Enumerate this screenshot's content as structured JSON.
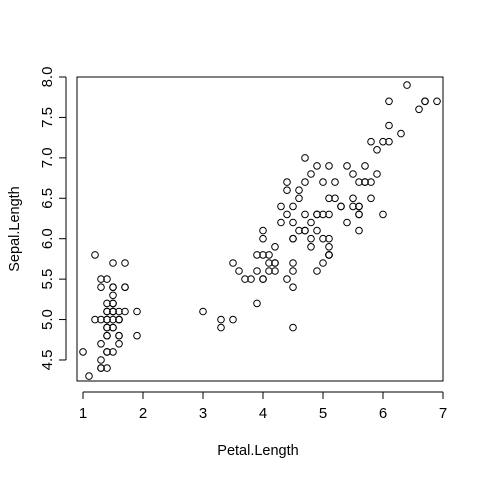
{
  "chart_data": {
    "type": "scatter",
    "title": "",
    "xlabel": "Petal.Length",
    "ylabel": "Sepal.Length",
    "xlim": [
      0.9,
      7.0
    ],
    "ylim": [
      4.24,
      8.0
    ],
    "xticks": [
      1,
      2,
      3,
      4,
      5,
      6,
      7
    ],
    "yticks": [
      4.5,
      5.0,
      5.5,
      6.0,
      6.5,
      7.0,
      7.5,
      8.0
    ],
    "xtick_labels": [
      "1",
      "2",
      "3",
      "4",
      "5",
      "6",
      "7"
    ],
    "ytick_labels": [
      "4.5",
      "5.0",
      "5.5",
      "6.0",
      "6.5",
      "7.0",
      "7.5",
      "8.0"
    ],
    "grid": false,
    "marker": "open-circle",
    "color": "#000000",
    "points": [
      [
        1.4,
        5.1
      ],
      [
        1.4,
        4.9
      ],
      [
        1.3,
        4.7
      ],
      [
        1.5,
        4.6
      ],
      [
        1.4,
        5.0
      ],
      [
        1.7,
        5.4
      ],
      [
        1.4,
        4.6
      ],
      [
        1.5,
        5.0
      ],
      [
        1.4,
        4.4
      ],
      [
        1.5,
        4.9
      ],
      [
        1.5,
        5.4
      ],
      [
        1.6,
        4.8
      ],
      [
        1.4,
        4.8
      ],
      [
        1.1,
        4.3
      ],
      [
        1.2,
        5.8
      ],
      [
        1.5,
        5.7
      ],
      [
        1.3,
        5.4
      ],
      [
        1.4,
        5.1
      ],
      [
        1.7,
        5.7
      ],
      [
        1.5,
        5.1
      ],
      [
        1.7,
        5.4
      ],
      [
        1.5,
        5.1
      ],
      [
        1.0,
        4.6
      ],
      [
        1.7,
        5.1
      ],
      [
        1.9,
        4.8
      ],
      [
        1.6,
        5.0
      ],
      [
        1.6,
        5.0
      ],
      [
        1.5,
        5.2
      ],
      [
        1.4,
        5.2
      ],
      [
        1.6,
        4.7
      ],
      [
        1.6,
        4.8
      ],
      [
        1.5,
        5.4
      ],
      [
        1.5,
        5.2
      ],
      [
        1.4,
        5.5
      ],
      [
        1.5,
        4.9
      ],
      [
        1.2,
        5.0
      ],
      [
        1.3,
        5.5
      ],
      [
        1.4,
        4.9
      ],
      [
        1.3,
        4.4
      ],
      [
        1.5,
        5.1
      ],
      [
        1.3,
        5.0
      ],
      [
        1.3,
        4.5
      ],
      [
        1.3,
        4.4
      ],
      [
        1.6,
        5.0
      ],
      [
        1.9,
        5.1
      ],
      [
        1.4,
        4.8
      ],
      [
        1.6,
        5.1
      ],
      [
        1.4,
        4.6
      ],
      [
        1.5,
        5.3
      ],
      [
        1.4,
        5.0
      ],
      [
        4.7,
        7.0
      ],
      [
        4.5,
        6.4
      ],
      [
        4.9,
        6.9
      ],
      [
        4.0,
        5.5
      ],
      [
        4.6,
        6.5
      ],
      [
        4.5,
        5.7
      ],
      [
        4.7,
        6.3
      ],
      [
        3.3,
        4.9
      ],
      [
        4.6,
        6.6
      ],
      [
        3.9,
        5.2
      ],
      [
        3.5,
        5.0
      ],
      [
        4.2,
        5.9
      ],
      [
        4.0,
        6.0
      ],
      [
        4.7,
        6.1
      ],
      [
        3.6,
        5.6
      ],
      [
        4.4,
        6.7
      ],
      [
        4.5,
        5.6
      ],
      [
        4.1,
        5.8
      ],
      [
        4.5,
        6.2
      ],
      [
        3.9,
        5.6
      ],
      [
        4.8,
        5.9
      ],
      [
        4.0,
        6.1
      ],
      [
        4.9,
        6.3
      ],
      [
        4.7,
        6.1
      ],
      [
        4.3,
        6.4
      ],
      [
        4.4,
        6.6
      ],
      [
        4.8,
        6.8
      ],
      [
        5.0,
        6.7
      ],
      [
        4.5,
        6.0
      ],
      [
        3.5,
        5.7
      ],
      [
        3.8,
        5.5
      ],
      [
        3.7,
        5.5
      ],
      [
        3.9,
        5.8
      ],
      [
        5.1,
        6.0
      ],
      [
        4.5,
        5.4
      ],
      [
        4.5,
        6.0
      ],
      [
        4.7,
        6.7
      ],
      [
        4.4,
        6.3
      ],
      [
        4.1,
        5.6
      ],
      [
        4.0,
        5.5
      ],
      [
        4.4,
        5.5
      ],
      [
        4.6,
        6.1
      ],
      [
        4.0,
        5.8
      ],
      [
        3.3,
        5.0
      ],
      [
        4.2,
        5.6
      ],
      [
        4.2,
        5.7
      ],
      [
        4.2,
        5.7
      ],
      [
        4.3,
        6.2
      ],
      [
        3.0,
        5.1
      ],
      [
        4.1,
        5.7
      ],
      [
        6.0,
        6.3
      ],
      [
        5.1,
        5.8
      ],
      [
        5.9,
        7.1
      ],
      [
        5.6,
        6.3
      ],
      [
        5.8,
        6.5
      ],
      [
        6.6,
        7.6
      ],
      [
        4.5,
        4.9
      ],
      [
        6.3,
        7.3
      ],
      [
        5.8,
        6.7
      ],
      [
        6.1,
        7.2
      ],
      [
        5.1,
        6.5
      ],
      [
        5.3,
        6.4
      ],
      [
        5.5,
        6.8
      ],
      [
        5.0,
        5.7
      ],
      [
        5.1,
        5.8
      ],
      [
        5.3,
        6.4
      ],
      [
        5.5,
        6.5
      ],
      [
        6.7,
        7.7
      ],
      [
        6.9,
        7.7
      ],
      [
        5.0,
        6.0
      ],
      [
        5.7,
        6.9
      ],
      [
        4.9,
        5.6
      ],
      [
        6.7,
        7.7
      ],
      [
        4.9,
        6.3
      ],
      [
        5.7,
        6.7
      ],
      [
        6.0,
        7.2
      ],
      [
        4.8,
        6.2
      ],
      [
        4.9,
        6.1
      ],
      [
        5.6,
        6.4
      ],
      [
        5.8,
        7.2
      ],
      [
        6.1,
        7.4
      ],
      [
        6.4,
        7.9
      ],
      [
        5.6,
        6.4
      ],
      [
        5.1,
        6.3
      ],
      [
        5.6,
        6.1
      ],
      [
        6.1,
        7.7
      ],
      [
        5.6,
        6.3
      ],
      [
        5.5,
        6.4
      ],
      [
        4.8,
        6.0
      ],
      [
        5.4,
        6.9
      ],
      [
        5.6,
        6.7
      ],
      [
        5.1,
        6.9
      ],
      [
        5.1,
        5.8
      ],
      [
        5.9,
        6.8
      ],
      [
        5.7,
        6.7
      ],
      [
        5.2,
        6.7
      ],
      [
        5.0,
        6.3
      ],
      [
        5.2,
        6.5
      ],
      [
        5.4,
        6.2
      ],
      [
        5.1,
        5.9
      ]
    ]
  }
}
